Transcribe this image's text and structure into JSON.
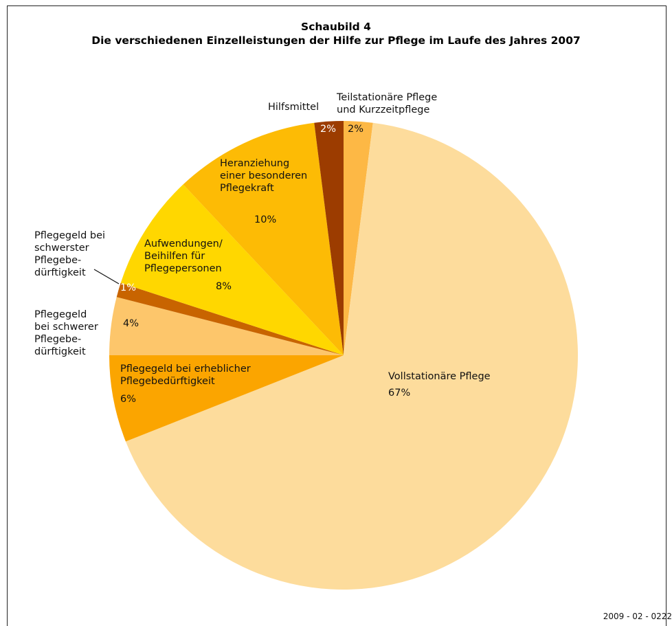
{
  "chart_data": {
    "type": "pie",
    "title": "Schaubild 4",
    "subtitle": "Die verschiedenen Einzelleistungen der Hilfe zur Pflege im Laufe des Jahres 2007",
    "footnote": "2009 - 02 - 0222",
    "categories": [
      "Teilstationäre Pflege\nund Kurzzeitpflege",
      "Vollstationäre Pflege",
      "Pflegegeld bei erheblicher\nPflegebedürftigkeit",
      "Pflegegeld\nbei schwerer\nPflegebe-\ndürftigkeit",
      "Pflegegeld bei\nschwerster\nPflegebe-\ndürftigkeit",
      "Aufwendungen/\nBeihilfen für\nPflegepersonen",
      "Heranziehung\neiner besonderen\nPflegekraft",
      "Hilfsmittel"
    ],
    "values": [
      2,
      67,
      6,
      4,
      1,
      8,
      10,
      2
    ],
    "value_labels": [
      "2%",
      "67%",
      "6%",
      "4%",
      "1%",
      "8%",
      "10%",
      "2%"
    ],
    "colors": [
      "#FDB845",
      "#FDDC9C",
      "#FBA500",
      "#FDC66B",
      "#C86400",
      "#FFD700",
      "#FDBB05",
      "#9C3C00"
    ]
  }
}
